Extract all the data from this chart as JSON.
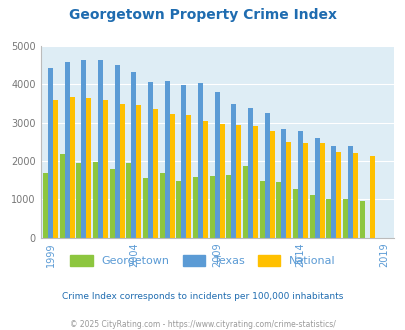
{
  "title": "Georgetown Property Crime Index",
  "years": [
    1999,
    2000,
    2001,
    2002,
    2003,
    2004,
    2005,
    2006,
    2007,
    2008,
    2009,
    2010,
    2011,
    2012,
    2013,
    2014,
    2015,
    2016,
    2017,
    2018,
    2019
  ],
  "georgetown": [
    1700,
    2180,
    1940,
    1980,
    1800,
    1940,
    1550,
    1700,
    1470,
    1580,
    1620,
    1630,
    1870,
    1470,
    1460,
    1270,
    1100,
    1000,
    1000,
    960,
    0
  ],
  "texas": [
    4420,
    4580,
    4630,
    4640,
    4500,
    4320,
    4070,
    4100,
    3990,
    4030,
    3810,
    3480,
    3380,
    3260,
    2840,
    2780,
    2600,
    2400,
    2400,
    0,
    0
  ],
  "national": [
    3600,
    3680,
    3640,
    3600,
    3500,
    3460,
    3360,
    3240,
    3190,
    3050,
    2970,
    2950,
    2910,
    2780,
    2510,
    2480,
    2460,
    2230,
    2200,
    2140,
    0
  ],
  "color_georgetown": "#8dc63f",
  "color_texas": "#5b9bd5",
  "color_national": "#ffc000",
  "plot_bg": "#deedf5",
  "ylim": [
    0,
    5000
  ],
  "yticks": [
    0,
    1000,
    2000,
    3000,
    4000,
    5000
  ],
  "xlabel_ticks": [
    1999,
    2004,
    2009,
    2014,
    2019
  ],
  "title_color": "#1f6cb0",
  "subtitle": "Crime Index corresponds to incidents per 100,000 inhabitants",
  "subtitle_color": "#1f6cb0",
  "footer": "© 2025 CityRating.com - https://www.cityrating.com/crime-statistics/",
  "footer_color": "#999999",
  "tick_color": "#5b9bd5",
  "ytick_color": "#777777",
  "grid_color": "#ffffff",
  "legend_labels": [
    "Georgetown",
    "Texas",
    "National"
  ]
}
